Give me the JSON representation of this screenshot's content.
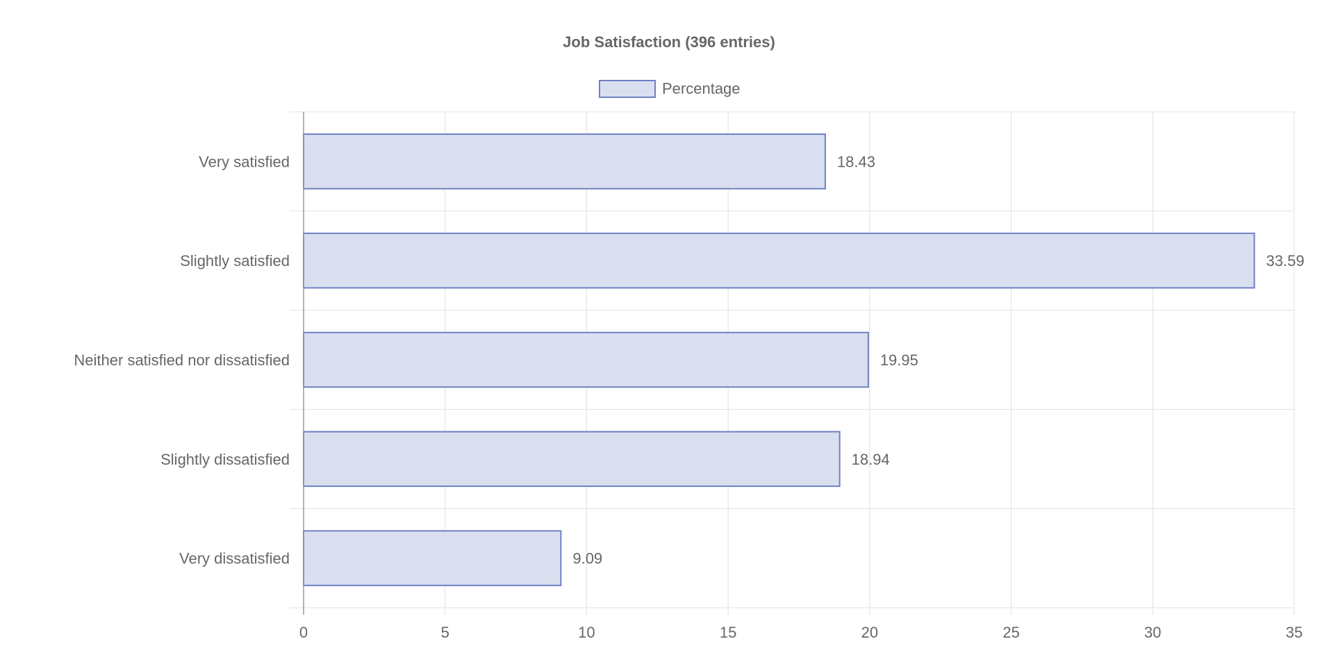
{
  "chart_data": {
    "type": "bar",
    "orientation": "horizontal",
    "title": "Job Satisfaction (396 entries)",
    "categories": [
      "Very satisfied",
      "Slightly satisfied",
      "Neither satisfied nor dissatisfied",
      "Slightly dissatisfied",
      "Very dissatisfied"
    ],
    "series": [
      {
        "name": "Percentage",
        "values": [
          18.43,
          33.59,
          19.95,
          18.94,
          9.09
        ]
      }
    ],
    "data_labels": [
      "18.43",
      "33.59",
      "19.95",
      "18.94",
      "9.09"
    ],
    "xlim": [
      0,
      35
    ],
    "x_ticks": [
      0,
      5,
      10,
      15,
      20,
      25,
      30,
      35
    ],
    "x_tick_labels": [
      "0",
      "5",
      "10",
      "15",
      "20",
      "25",
      "30",
      "35"
    ],
    "xlabel": "",
    "ylabel": "",
    "grid": true,
    "legend_position": "top-center",
    "colors": {
      "bar_fill": "#dadff0",
      "bar_stroke": "#6f80c2",
      "grid": "#e1e1e1",
      "axis": "#9a9a9a",
      "text": "#666666"
    }
  }
}
